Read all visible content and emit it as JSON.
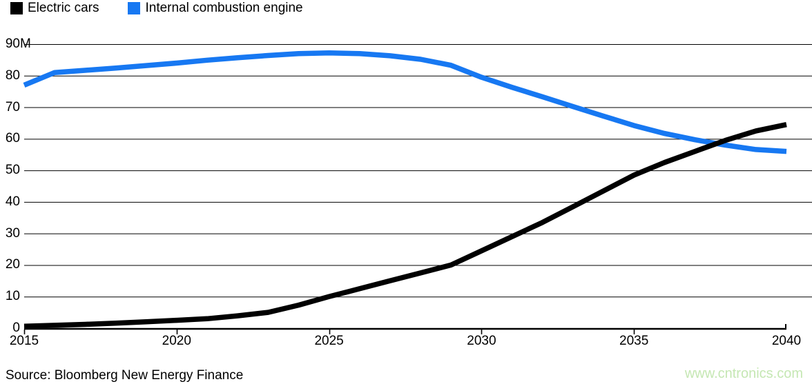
{
  "legend": {
    "items": [
      {
        "label": "Electric cars",
        "color": "#000000"
      },
      {
        "label": "Internal combustion engine",
        "color": "#1778f2"
      }
    ]
  },
  "chart_data": {
    "type": "line",
    "title": "",
    "xlabel": "",
    "ylabel": "",
    "unit": "M",
    "grid": "horizontal",
    "legend_position": "top-left",
    "xlim": [
      2015,
      2040
    ],
    "ylim": [
      0,
      90
    ],
    "x": [
      2015,
      2016,
      2017,
      2018,
      2019,
      2020,
      2021,
      2022,
      2023,
      2024,
      2025,
      2026,
      2027,
      2028,
      2029,
      2030,
      2031,
      2032,
      2033,
      2034,
      2035,
      2036,
      2037,
      2038,
      2039,
      2040
    ],
    "series": [
      {
        "name": "Electric cars",
        "color": "#000000",
        "values": [
          0.6,
          0.9,
          1.2,
          1.6,
          2.0,
          2.5,
          3.0,
          3.9,
          5.0,
          7.3,
          10.0,
          12.5,
          15.0,
          17.5,
          20.0,
          24.5,
          29.0,
          33.5,
          38.5,
          43.5,
          48.5,
          52.5,
          56.0,
          59.5,
          62.5,
          64.5
        ]
      },
      {
        "name": "Internal combustion engine",
        "color": "#1778f2",
        "values": [
          77.0,
          81.0,
          81.7,
          82.4,
          83.2,
          84.0,
          84.9,
          85.7,
          86.4,
          87.0,
          87.2,
          87.0,
          86.3,
          85.2,
          83.3,
          79.5,
          76.3,
          73.3,
          70.2,
          67.2,
          64.2,
          61.7,
          59.7,
          58.0,
          56.6,
          56.0
        ]
      }
    ],
    "yticks": [
      {
        "value": 0,
        "label": "0",
        "suffix": ""
      },
      {
        "value": 10,
        "label": "10",
        "suffix": ""
      },
      {
        "value": 20,
        "label": "20",
        "suffix": ""
      },
      {
        "value": 30,
        "label": "30",
        "suffix": ""
      },
      {
        "value": 40,
        "label": "40",
        "suffix": ""
      },
      {
        "value": 50,
        "label": "50",
        "suffix": ""
      },
      {
        "value": 60,
        "label": "60",
        "suffix": ""
      },
      {
        "value": 70,
        "label": "70",
        "suffix": ""
      },
      {
        "value": 80,
        "label": "80",
        "suffix": ""
      },
      {
        "value": 90,
        "label": "90",
        "suffix": "M"
      }
    ],
    "xticks": [
      2015,
      2020,
      2025,
      2030,
      2035,
      2040
    ]
  },
  "footer": {
    "source": "Source: Bloomberg New Energy Finance",
    "watermark": "www.cntronics.com",
    "watermark_color": "#c5e7b3"
  },
  "colors": {
    "grid": "#000000",
    "axis": "#000000",
    "text": "#000000"
  }
}
